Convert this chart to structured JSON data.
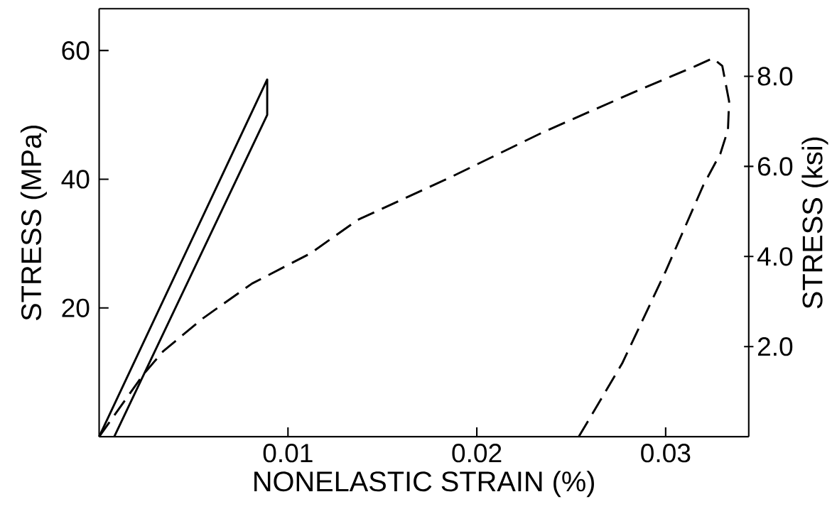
{
  "chart_data": {
    "type": "line",
    "xlabel": "NONELASTIC STRAIN (%)",
    "ylabel": "STRESS (MPa)",
    "y2label": "STRESS (ksi)",
    "xlim": [
      0,
      0.0344
    ],
    "ylim": [
      0,
      66.5
    ],
    "y2lim": [
      0,
      9.5
    ],
    "xticks": [
      0.01,
      0.02,
      0.03
    ],
    "yticks": [
      20,
      40,
      60
    ],
    "y2ticks": [
      {
        "value": 2,
        "label": "2.0"
      },
      {
        "value": 4,
        "label": "4.0"
      },
      {
        "value": 6,
        "label": "6.0"
      },
      {
        "value": 8,
        "label": "8.0"
      }
    ],
    "series": [
      {
        "color": "#000000",
        "line_style": "solid",
        "x": [
          0,
          0.0089,
          0.0089,
          0.0008
        ],
        "values": [
          0,
          55.5,
          50.0,
          0
        ]
      },
      {
        "color": "#000000",
        "line_style": "dashed",
        "x": [
          0,
          0.00235,
          0.0034,
          0.0055,
          0.0081,
          0.0112,
          0.0137,
          0.0186,
          0.0235,
          0.0283,
          0.0316,
          0.0325,
          0.033,
          0.03336,
          0.0333,
          0.0329,
          0.032,
          0.03,
          0.0277,
          0.0254
        ],
        "values": [
          0,
          9.7,
          13.3,
          18.4,
          23.8,
          28.5,
          33.7,
          40.3,
          47.3,
          53.5,
          57.6,
          58.8,
          57.6,
          52.1,
          47.7,
          44.0,
          39.1,
          25.7,
          11.4,
          0
        ]
      }
    ]
  }
}
